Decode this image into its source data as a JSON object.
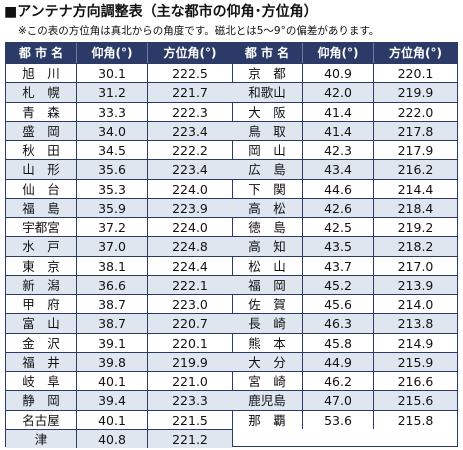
{
  "title": "■アンテナ方向調整表（主な都市の仰角･方位角）",
  "note": "※この表の方位角は真北からの角度です。磁北とは5～9°の偏差があります。",
  "headers": {
    "city": "都 市 名",
    "elev": "仰角(°)",
    "azim": "方位角(°)"
  },
  "left": [
    {
      "city": "旭　川",
      "elev": "30.1",
      "azim": "222.5"
    },
    {
      "city": "札　幌",
      "elev": "31.2",
      "azim": "221.7"
    },
    {
      "city": "青　森",
      "elev": "33.3",
      "azim": "222.3"
    },
    {
      "city": "盛　岡",
      "elev": "34.0",
      "azim": "223.4"
    },
    {
      "city": "秋　田",
      "elev": "34.5",
      "azim": "222.2"
    },
    {
      "city": "山　形",
      "elev": "35.6",
      "azim": "223.4"
    },
    {
      "city": "仙　台",
      "elev": "35.3",
      "azim": "224.0"
    },
    {
      "city": "福　島",
      "elev": "35.9",
      "azim": "223.9"
    },
    {
      "city": "宇都宮",
      "elev": "37.2",
      "azim": "224.0"
    },
    {
      "city": "水　戸",
      "elev": "37.0",
      "azim": "224.8"
    },
    {
      "city": "東　京",
      "elev": "38.1",
      "azim": "224.4"
    },
    {
      "city": "新　潟",
      "elev": "36.6",
      "azim": "222.1"
    },
    {
      "city": "甲　府",
      "elev": "38.7",
      "azim": "223.0"
    },
    {
      "city": "富　山",
      "elev": "38.7",
      "azim": "220.7"
    },
    {
      "city": "金　沢",
      "elev": "39.1",
      "azim": "220.1"
    },
    {
      "city": "福　井",
      "elev": "39.8",
      "azim": "219.9"
    },
    {
      "city": "岐　阜",
      "elev": "40.1",
      "azim": "221.0"
    },
    {
      "city": "静　岡",
      "elev": "39.4",
      "azim": "223.3"
    },
    {
      "city": "名古屋",
      "elev": "40.1",
      "azim": "221.5"
    },
    {
      "city": "津",
      "elev": "40.8",
      "azim": "221.2"
    }
  ],
  "right": [
    {
      "city": "京　都",
      "elev": "40.9",
      "azim": "220.1"
    },
    {
      "city": "和歌山",
      "elev": "42.0",
      "azim": "219.9"
    },
    {
      "city": "大　阪",
      "elev": "41.4",
      "azim": "222.0"
    },
    {
      "city": "鳥　取",
      "elev": "41.4",
      "azim": "217.8"
    },
    {
      "city": "岡　山",
      "elev": "42.3",
      "azim": "217.9"
    },
    {
      "city": "広　島",
      "elev": "43.4",
      "azim": "216.2"
    },
    {
      "city": "下　関",
      "elev": "44.6",
      "azim": "214.4"
    },
    {
      "city": "高　松",
      "elev": "42.6",
      "azim": "218.4"
    },
    {
      "city": "徳　島",
      "elev": "42.5",
      "azim": "219.2"
    },
    {
      "city": "高　知",
      "elev": "43.5",
      "azim": "218.2"
    },
    {
      "city": "松　山",
      "elev": "43.7",
      "azim": "217.0"
    },
    {
      "city": "福　岡",
      "elev": "45.2",
      "azim": "213.9"
    },
    {
      "city": "佐　賀",
      "elev": "45.6",
      "azim": "214.0"
    },
    {
      "city": "長　崎",
      "elev": "46.3",
      "azim": "213.8"
    },
    {
      "city": "熊　本",
      "elev": "45.8",
      "azim": "214.9"
    },
    {
      "city": "大　分",
      "elev": "44.9",
      "azim": "215.9"
    },
    {
      "city": "宮　崎",
      "elev": "46.2",
      "azim": "216.6"
    },
    {
      "city": "鹿児島",
      "elev": "47.0",
      "azim": "215.6"
    },
    {
      "city": "那　覇",
      "elev": "53.6",
      "azim": "215.8"
    }
  ]
}
